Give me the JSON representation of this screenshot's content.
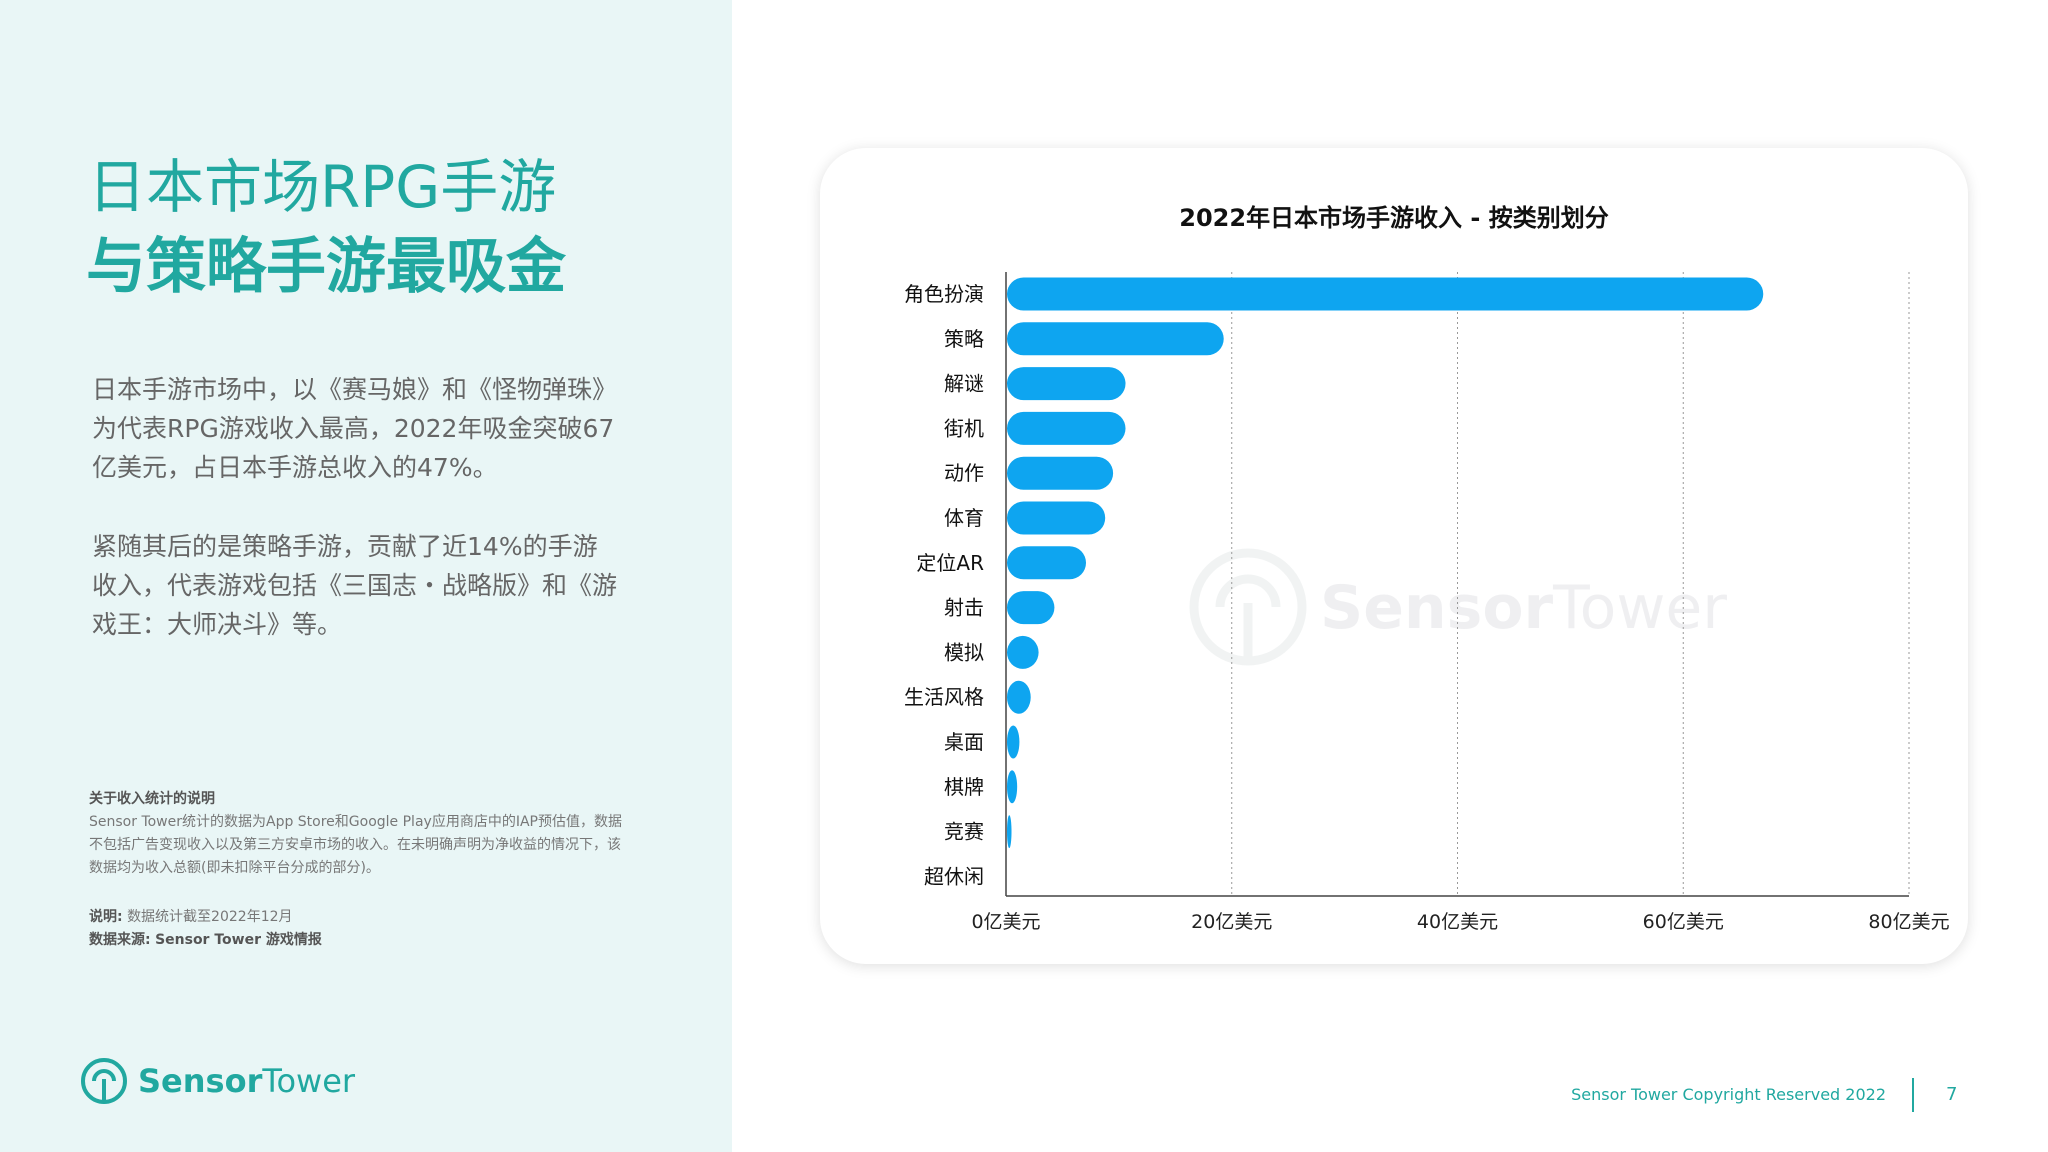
{
  "left": {
    "headline_line1": "日本市场RPG手游",
    "headline_line2": "与策略手游最吸金",
    "paragraph1": "日本手游市场中，以《赛马娘》和《怪物弹珠》为代表RPG游戏收入最高，2022年吸金突破67亿美元，占日本手游总收入的47%。",
    "paragraph2": "紧随其后的是策略手游，贡献了近14%的手游收入，代表游戏包括《三国志・战略版》和《游戏王：大师决斗》等。",
    "note_title": "关于收入统计的说明",
    "note_body": "Sensor Tower统计的数据为App Store和Google Play应用商店中的IAP预估值，数据不包括广告变现收入以及第三方安卓市场的收入。在未明确声明为净收益的情况下，该数据均为收入总额(即未扣除平台分成的部分)。",
    "explain_label": "说明:",
    "explain_text": "数据统计截至2022年12月",
    "source_label": "数据来源:",
    "source_text": "Sensor Tower 游戏情报",
    "logo_sensor": "Sensor",
    "logo_tower": "Tower"
  },
  "footer": {
    "copyright": "Sensor Tower Copyright Reserved 2022",
    "page_number": "7"
  },
  "watermark": {
    "sensor": "Sensor",
    "tower": "Tower"
  },
  "colors": {
    "accent": "#21a8a0",
    "bar": "#0ea5f0",
    "panel_bg": "#e9f6f6"
  },
  "chart_data": {
    "type": "bar",
    "orientation": "horizontal",
    "title": "2022年日本市场手游收入 - 按类别划分",
    "categories": [
      "角色扮演",
      "策略",
      "解谜",
      "街机",
      "动作",
      "体育",
      "定位AR",
      "射击",
      "模拟",
      "生活风格",
      "桌面",
      "棋牌",
      "竞赛",
      "超休闲"
    ],
    "values": [
      67,
      19.2,
      10.5,
      10.5,
      9.4,
      8.7,
      7,
      4.2,
      2.8,
      2.1,
      1.1,
      0.9,
      0.4,
      0
    ],
    "unit": "亿美元",
    "xlim": [
      0,
      80
    ],
    "ticks": [
      0,
      20,
      40,
      60,
      80
    ],
    "tick_labels": [
      "0亿美元",
      "20亿美元",
      "40亿美元",
      "60亿美元",
      "80亿美元"
    ],
    "grid": "vertical dotted",
    "legend": "none"
  }
}
